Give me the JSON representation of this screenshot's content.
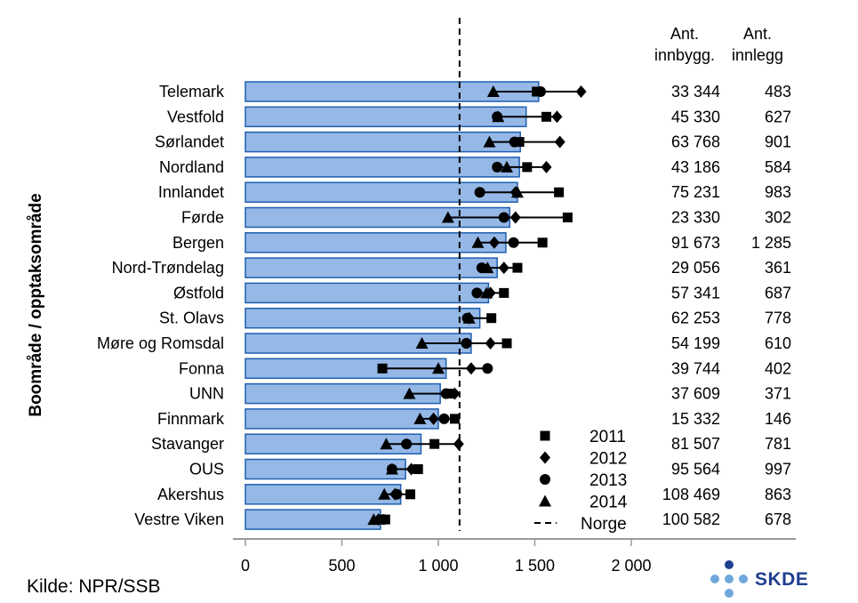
{
  "chart_data": {
    "type": "bar",
    "ylabel": "Boområde / opptaksområde",
    "xlim": [
      0,
      2000
    ],
    "xticks": [
      0,
      500,
      1000,
      1500,
      2000
    ],
    "xtick_labels": [
      "0",
      "500",
      "1 000",
      "1 500",
      "2 000"
    ],
    "reference_line": {
      "name": "Norge",
      "value": 1110
    },
    "categories": [
      "Telemark",
      "Vestfold",
      "Sørlandet",
      "Nordland",
      "Innlandet",
      "Førde",
      "Bergen",
      "Nord-Trøndelag",
      "Østfold",
      "St. Olavs",
      "Møre og Romsdal",
      "Fonna",
      "UNN",
      "Finnmark",
      "Stavanger",
      "OUS",
      "Akershus",
      "Vestre Viken"
    ],
    "bar_values": [
      1520,
      1455,
      1425,
      1420,
      1410,
      1370,
      1350,
      1305,
      1260,
      1215,
      1170,
      1040,
      1010,
      1000,
      910,
      830,
      805,
      700
    ],
    "series": [
      {
        "name": "2011",
        "marker": "square",
        "values": [
          1510,
          1560,
          1420,
          1460,
          1625,
          1670,
          1540,
          1410,
          1340,
          1275,
          1355,
          710,
          1060,
          1085,
          980,
          895,
          855,
          725
        ]
      },
      {
        "name": "2012",
        "marker": "diamond",
        "values": [
          1740,
          1615,
          1630,
          1560,
          1400,
          1400,
          1290,
          1340,
          1270,
          1160,
          1270,
          1170,
          1085,
          975,
          1105,
          860,
          775,
          690
        ]
      },
      {
        "name": "2013",
        "marker": "circle",
        "values": [
          1530,
          1305,
          1395,
          1305,
          1215,
          1340,
          1390,
          1225,
          1200,
          1150,
          1145,
          1255,
          1040,
          1030,
          835,
          760,
          785,
          715
        ]
      },
      {
        "name": "2014",
        "marker": "triangle",
        "values": [
          1285,
          1310,
          1265,
          1355,
          1410,
          1050,
          1205,
          1255,
          1250,
          1160,
          915,
          1000,
          850,
          905,
          730,
          760,
          720,
          665
        ]
      }
    ],
    "table_headers": [
      {
        "line1": "Ant.",
        "line2": "innbygg."
      },
      {
        "line1": "Ant.",
        "line2": "innlegg"
      }
    ],
    "innbyggere": [
      "33 344",
      "45 330",
      "63 768",
      "43 186",
      "75 231",
      "23 330",
      "91 673",
      "29 056",
      "57 341",
      "62 253",
      "54 199",
      "39 744",
      "37 609",
      "15 332",
      "81 507",
      "95 564",
      "108 469",
      "100 582"
    ],
    "innleggelser": [
      "483",
      "627",
      "901",
      "584",
      "983",
      "302",
      "1 285",
      "361",
      "687",
      "778",
      "610",
      "402",
      "371",
      "146",
      "781",
      "997",
      "863",
      "678"
    ],
    "legend_position": "bottom-right",
    "colors": {
      "bar_fill": "#95b8e6",
      "bar_stroke": "#1f5fb0",
      "axis": "#9a9a9a"
    }
  },
  "footer": {
    "source": "Kilde: NPR/SSB"
  },
  "logo": {
    "text": "SKDE",
    "color": "#1f3f8f",
    "dot_dark": "#1f3f8f",
    "dot_light": "#6fa8dc"
  }
}
